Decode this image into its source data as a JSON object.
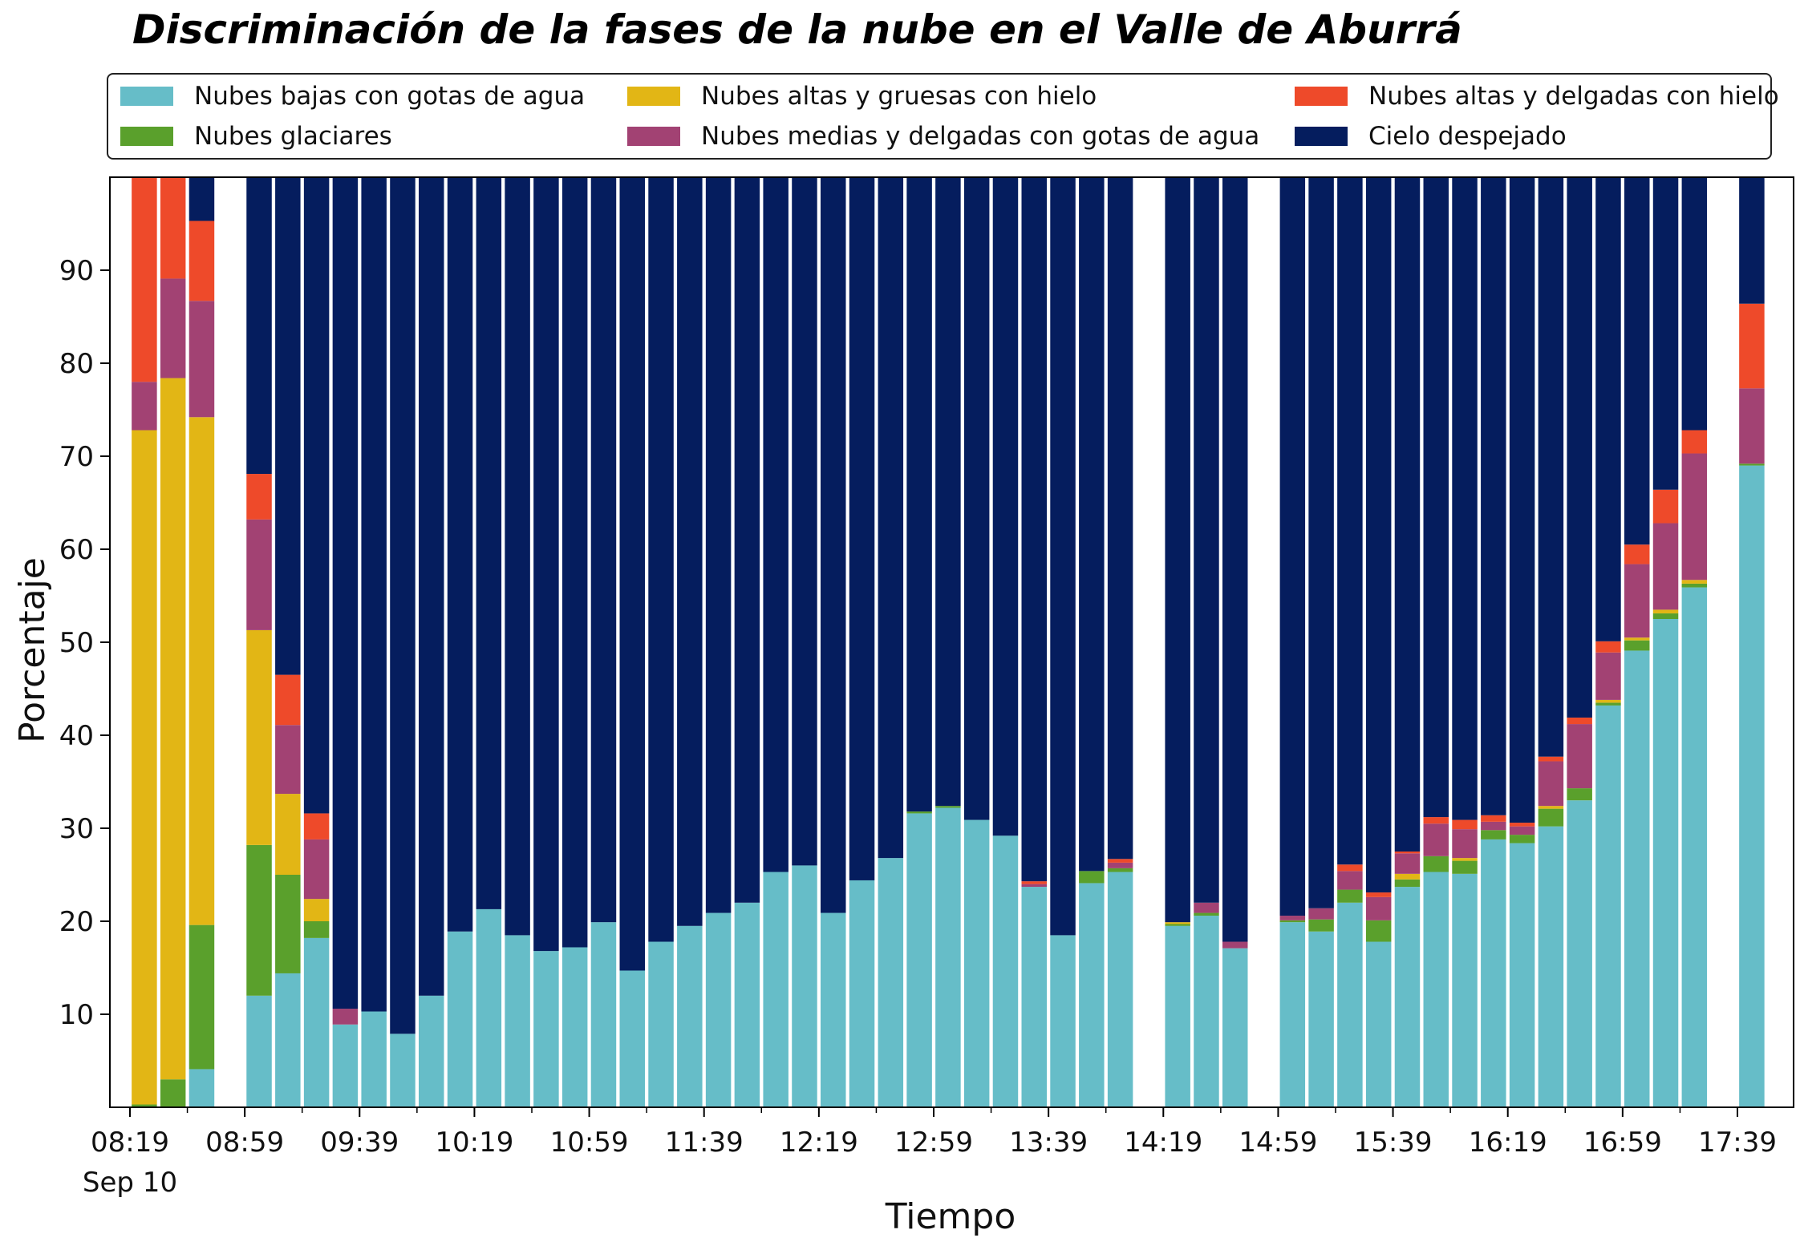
{
  "chart_data": {
    "type": "bar",
    "stacked": true,
    "title": "Discriminación de la fases de la nube en el Valle de Aburrá",
    "xlabel": "Tiempo",
    "ylabel": "Porcentaje",
    "ylim": [
      0,
      100
    ],
    "yticks": [
      10,
      20,
      30,
      40,
      50,
      60,
      70,
      80,
      90
    ],
    "xticks": [
      "08:19",
      "08:59",
      "09:39",
      "10:19",
      "10:59",
      "11:39",
      "12:19",
      "12:59",
      "13:39",
      "14:19",
      "14:59",
      "15:39",
      "16:19",
      "16:59",
      "17:39"
    ],
    "xtick_date": "Sep 10",
    "legend_position": "top",
    "x": [
      "08:24",
      "08:34",
      "08:44",
      "08:54",
      "09:04",
      "09:14",
      "09:24",
      "09:34",
      "09:44",
      "09:54",
      "10:04",
      "10:14",
      "10:24",
      "10:34",
      "10:44",
      "10:54",
      "11:04",
      "11:14",
      "11:24",
      "11:34",
      "11:44",
      "11:54",
      "12:04",
      "12:14",
      "12:24",
      "12:34",
      "12:44",
      "12:54",
      "13:04",
      "13:14",
      "13:24",
      "13:34",
      "13:44",
      "13:54",
      "14:04",
      "14:14",
      "14:24",
      "14:34",
      "14:44",
      "14:54",
      "15:04",
      "15:14",
      "15:24",
      "15:34",
      "15:44",
      "15:54",
      "16:04",
      "16:14",
      "16:24",
      "16:34",
      "16:44",
      "16:54",
      "17:04",
      "17:14",
      "17:24",
      "17:34",
      "17:44"
    ],
    "series": [
      {
        "name": "Nubes bajas con gotas de agua",
        "color": "#66BDC8",
        "values": [
          0,
          0,
          4.1,
          null,
          12.0,
          14.4,
          18.2,
          8.9,
          10.3,
          7.9,
          12.0,
          18.9,
          21.3,
          18.5,
          16.8,
          17.2,
          19.9,
          14.7,
          17.8,
          19.5,
          20.9,
          22.0,
          25.3,
          26.0,
          20.9,
          24.4,
          26.8,
          31.6,
          32.2,
          30.9,
          29.2,
          23.7,
          18.5,
          24.1,
          25.3,
          null,
          19.5,
          20.6,
          17.1,
          null,
          19.9,
          18.9,
          22.0,
          17.8,
          23.7,
          25.3,
          25.1,
          28.8,
          28.4,
          30.2,
          33.0,
          43.2,
          49.1,
          52.5,
          55.9,
          null,
          69.0
        ]
      },
      {
        "name": "Nubes glaciares",
        "color": "#5AA02C",
        "values": [
          0.3,
          3.0,
          15.5,
          null,
          16.2,
          10.6,
          1.8,
          0,
          0,
          0,
          0,
          0,
          0,
          0,
          0,
          0,
          0,
          0,
          0,
          0,
          0,
          0,
          0,
          0,
          0,
          0,
          0,
          0.2,
          0.2,
          0,
          0,
          0,
          0,
          1.3,
          0.4,
          null,
          0.2,
          0.3,
          0,
          null,
          0.2,
          1.3,
          1.4,
          2.3,
          0.8,
          1.7,
          1.4,
          1.0,
          0.9,
          1.9,
          1.3,
          0.3,
          1.1,
          0.6,
          0.4,
          null,
          0.2
        ]
      },
      {
        "name": "Nubes altas y gruesas con hielo",
        "color": "#E2B615",
        "values": [
          72.5,
          75.4,
          54.6,
          null,
          23.1,
          8.7,
          2.4,
          0,
          0,
          0,
          0,
          0,
          0,
          0,
          0,
          0,
          0,
          0,
          0,
          0,
          0,
          0,
          0,
          0,
          0,
          0,
          0,
          0,
          0,
          0,
          0,
          0,
          0,
          0,
          0,
          null,
          0.2,
          0,
          0,
          null,
          0,
          0,
          0,
          0,
          0.6,
          0,
          0.3,
          0,
          0,
          0.3,
          0,
          0.3,
          0.3,
          0.4,
          0.4,
          null,
          0
        ]
      },
      {
        "name": "Nubes medias y delgadas con gotas de agua",
        "color": "#A24273",
        "values": [
          5.2,
          10.7,
          12.5,
          null,
          11.9,
          7.4,
          6.4,
          1.7,
          0,
          0,
          0,
          0,
          0,
          0,
          0,
          0,
          0,
          0,
          0,
          0,
          0,
          0,
          0,
          0,
          0,
          0,
          0,
          0,
          0,
          0,
          0,
          0.3,
          0,
          0,
          0.6,
          null,
          0,
          1.1,
          0.7,
          null,
          0.5,
          1.2,
          2.0,
          2.5,
          2.2,
          3.5,
          3.1,
          0.9,
          0.9,
          4.8,
          6.9,
          5.1,
          7.9,
          9.3,
          13.6,
          null,
          8.1
        ]
      },
      {
        "name": "Nubes altas y delgadas con hielo",
        "color": "#EE4A2A",
        "values": [
          22.0,
          10.9,
          8.6,
          null,
          4.9,
          5.4,
          2.8,
          0,
          0,
          0,
          0,
          0,
          0,
          0,
          0,
          0,
          0,
          0,
          0,
          0,
          0,
          0,
          0,
          0,
          0,
          0,
          0,
          0,
          0,
          0,
          0,
          0.3,
          0,
          0,
          0.4,
          null,
          0,
          0,
          0,
          null,
          0,
          0,
          0.7,
          0.5,
          0.2,
          0.7,
          1.0,
          0.7,
          0.4,
          0.5,
          0.7,
          1.2,
          2.1,
          3.6,
          2.5,
          null,
          9.1
        ]
      },
      {
        "name": "Cielo despejado",
        "color": "#051D5E",
        "values": [
          0,
          0,
          4.9,
          null,
          31.9,
          53.5,
          68.4,
          89.4,
          89.7,
          92.1,
          88.0,
          81.1,
          78.7,
          81.5,
          83.2,
          82.8,
          80.1,
          85.3,
          82.2,
          80.5,
          79.1,
          78.0,
          74.7,
          74.0,
          79.1,
          75.6,
          73.2,
          68.2,
          67.6,
          69.1,
          70.8,
          75.7,
          81.5,
          74.6,
          73.3,
          null,
          80.1,
          78.0,
          82.2,
          null,
          79.4,
          78.6,
          73.9,
          76.9,
          72.5,
          68.8,
          69.1,
          68.6,
          69.4,
          62.3,
          58.1,
          49.9,
          39.5,
          33.6,
          27.2,
          null,
          13.6
        ]
      }
    ]
  }
}
